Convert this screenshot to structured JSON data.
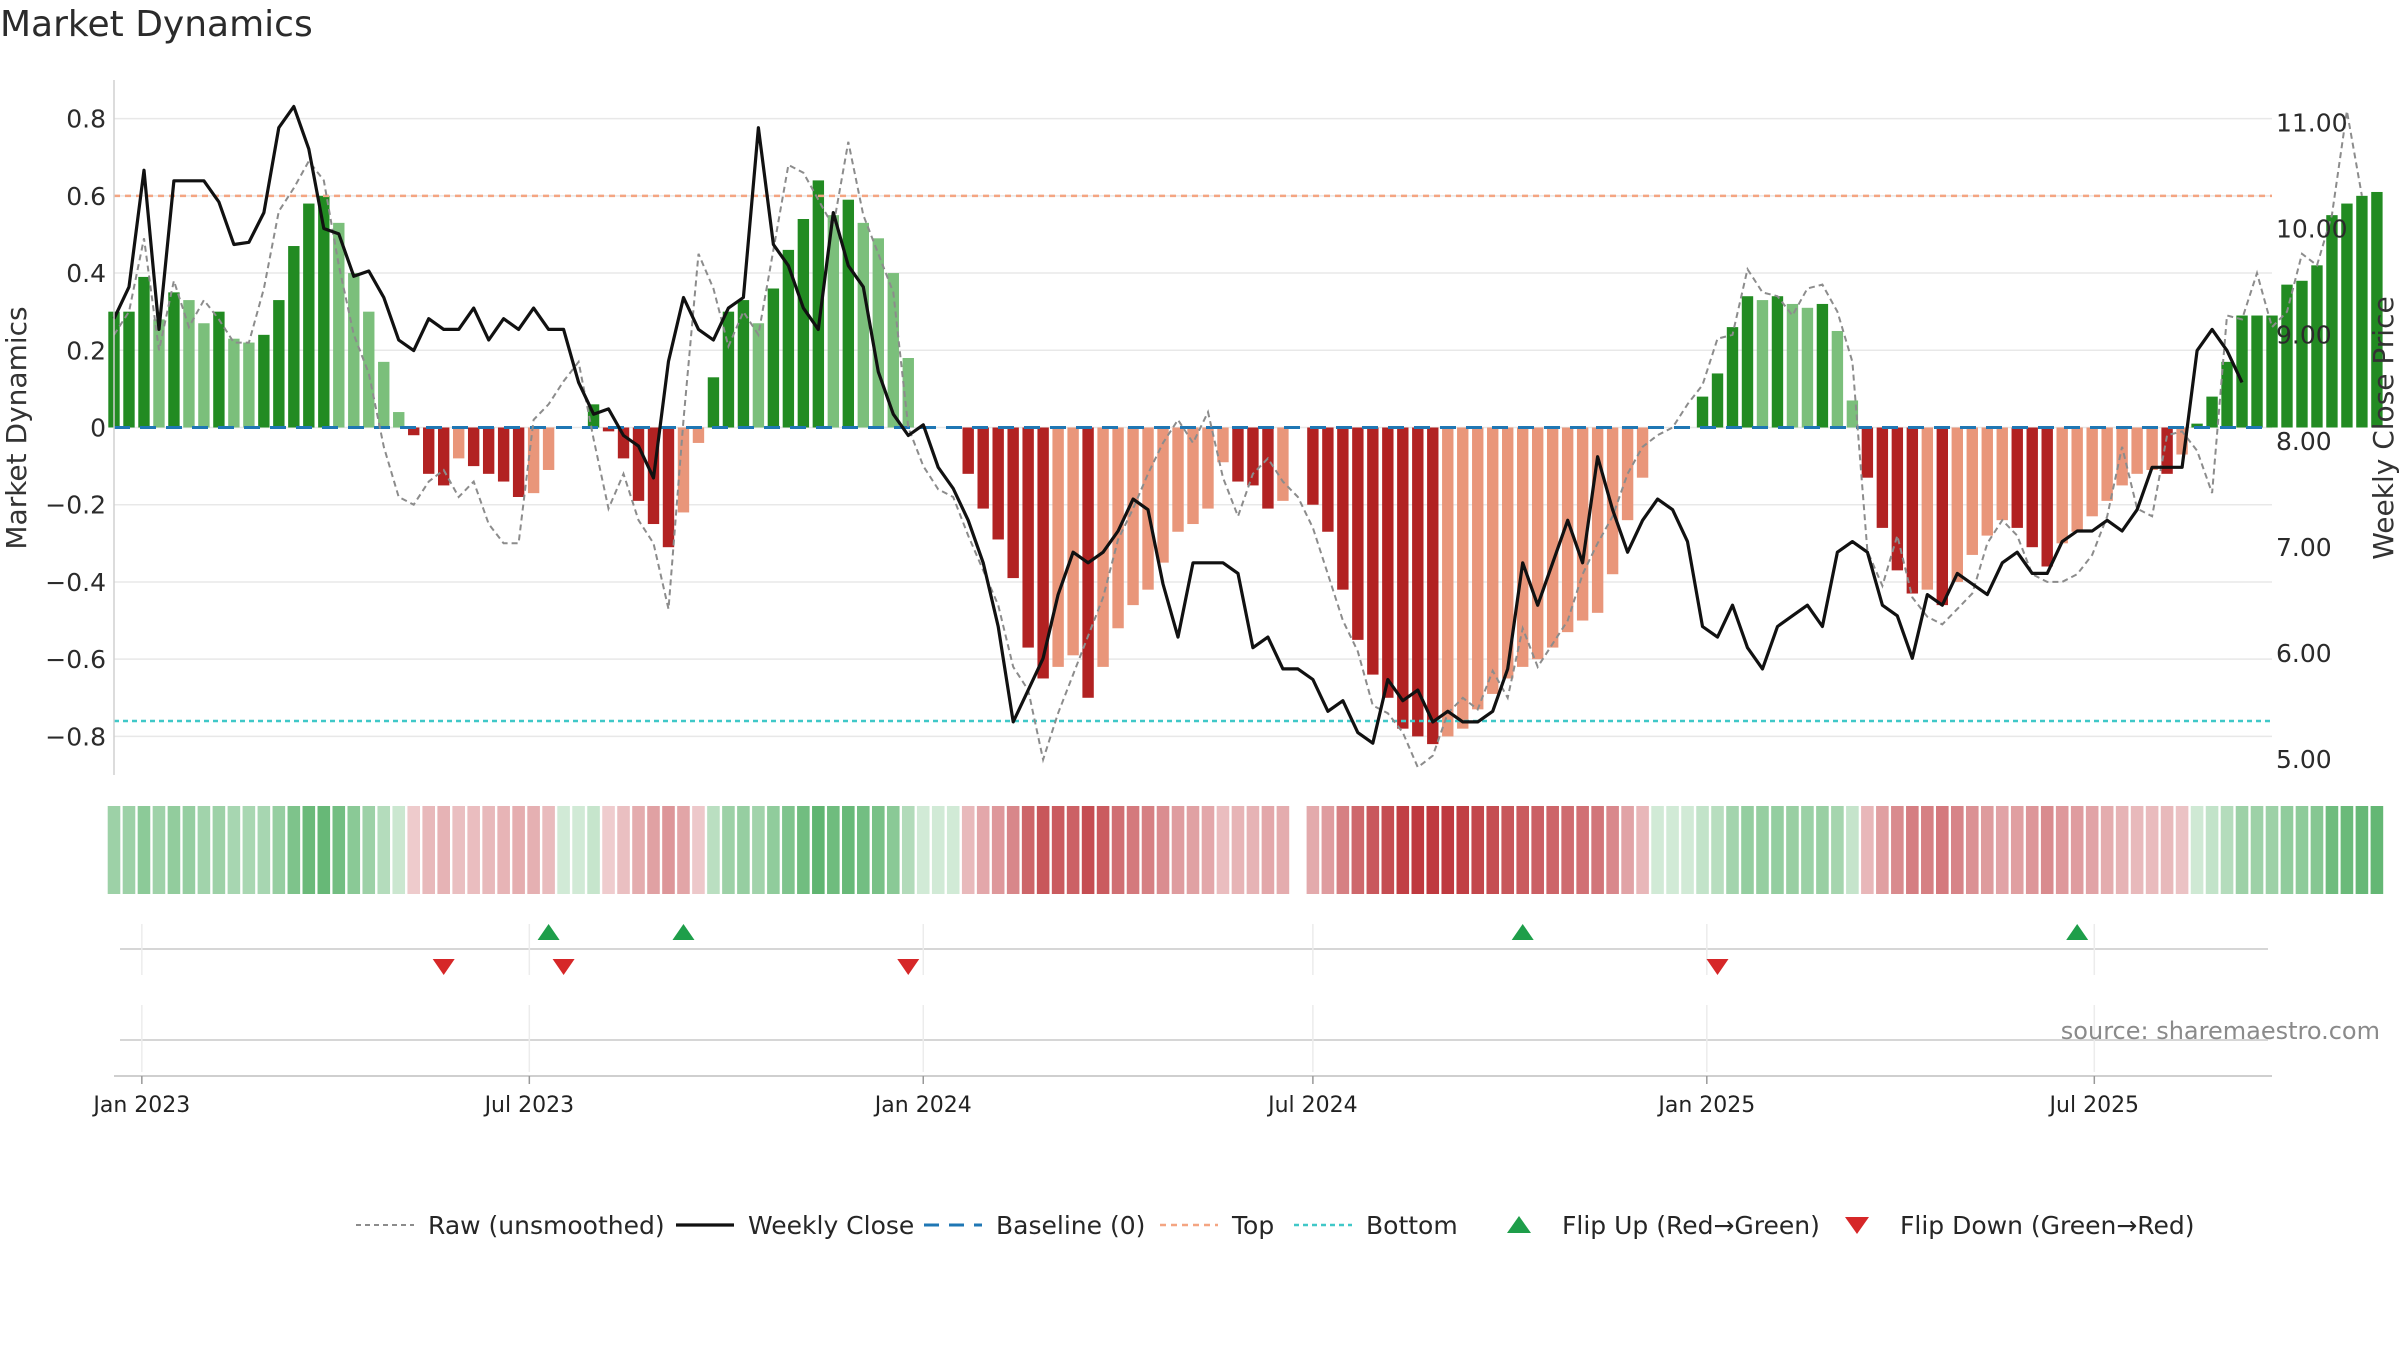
{
  "chart_data": {
    "type": "bar",
    "title": "Market Dynamics",
    "ylabel": "Market Dynamics",
    "y2label": "Weekly Close Price",
    "source": "source: sharemaestro.com",
    "ylim": [
      -0.9,
      0.9
    ],
    "y2lim": [
      4.85,
      11.4
    ],
    "yticks": [
      0.8,
      0.6,
      0.4,
      0.2,
      0,
      -0.2,
      -0.4,
      -0.6,
      -0.8
    ],
    "ytick_labels": [
      "0.8",
      "0.6",
      "0.4",
      "0.2",
      "0",
      "−0.2",
      "−0.4",
      "−0.6",
      "−0.8"
    ],
    "y2ticks": [
      11,
      10,
      9,
      8,
      7,
      6,
      5
    ],
    "y2tick_labels": [
      "11.00",
      "10.00",
      "9.00",
      "8.00",
      "7.00",
      "6.00",
      "5.00"
    ],
    "xlim": [
      "2022-12-19",
      "2025-09-22"
    ],
    "xticks": [
      "2023-01-01",
      "2023-07-01",
      "2024-01-01",
      "2024-07-01",
      "2025-01-01",
      "2025-07-01"
    ],
    "xtick_labels": [
      "Jan 2023",
      "Jul 2023",
      "Jan 2024",
      "Jul 2024",
      "Jan 2025",
      "Jul 2025"
    ],
    "top_level": 0.6,
    "bottom_level": -0.76,
    "start_date": "2022-12-19",
    "interval_days": 7,
    "missing_weeks": [
      79
    ],
    "colors": {
      "pos_strong": "#228b22",
      "pos_weak": "#7bbf7b",
      "neg_strong": "#b22222",
      "neg_weak": "#e9967a",
      "raw": "#8c8c8c",
      "close": "#111111",
      "baseline": "#1f77b4",
      "top": "#f4a582",
      "bottom": "#40c8c8",
      "flip_up": "#1e9e4a",
      "flip_down": "#d62728",
      "grid": "#e8e8e8"
    },
    "series": [
      {
        "name": "Market Dynamics",
        "kind": "bar",
        "values": [
          0.3,
          0.3,
          0.39,
          0.28,
          0.35,
          0.33,
          0.27,
          0.3,
          0.23,
          0.22,
          0.24,
          0.33,
          0.47,
          0.58,
          0.6,
          0.53,
          0.4,
          0.3,
          0.17,
          0.04,
          -0.02,
          -0.12,
          -0.15,
          -0.08,
          -0.1,
          -0.12,
          -0.14,
          -0.18,
          -0.17,
          -0.11,
          0.0,
          0.0,
          0.06,
          -0.01,
          -0.08,
          -0.19,
          -0.25,
          -0.31,
          -0.22,
          -0.04,
          0.13,
          0.3,
          0.33,
          0.27,
          0.36,
          0.46,
          0.54,
          0.64,
          0.55,
          0.59,
          0.53,
          0.49,
          0.4,
          0.18,
          0.0,
          0.0,
          0.0,
          -0.12,
          -0.21,
          -0.29,
          -0.39,
          -0.57,
          -0.65,
          -0.62,
          -0.59,
          -0.7,
          -0.62,
          -0.52,
          -0.46,
          -0.42,
          -0.35,
          -0.27,
          -0.25,
          -0.21,
          -0.09,
          -0.14,
          -0.15,
          -0.21,
          -0.19,
          -0.15,
          -0.2,
          -0.27,
          -0.42,
          -0.55,
          -0.64,
          -0.7,
          -0.78,
          -0.8,
          -0.82,
          -0.8,
          -0.78,
          -0.73,
          -0.69,
          -0.65,
          -0.62,
          -0.6,
          -0.57,
          -0.53,
          -0.5,
          -0.48,
          -0.38,
          -0.24,
          -0.13,
          0.0,
          0.0,
          0.0,
          0.08,
          0.14,
          0.26,
          0.34,
          0.33,
          0.34,
          0.32,
          0.31,
          0.32,
          0.25,
          0.07,
          -0.13,
          -0.26,
          -0.37,
          -0.43,
          -0.42,
          -0.46,
          -0.4,
          -0.33,
          -0.28,
          -0.24,
          -0.26,
          -0.31,
          -0.36,
          -0.3,
          -0.27,
          -0.23,
          -0.19,
          -0.15,
          -0.12,
          -0.11,
          -0.12,
          -0.07,
          0.01,
          0.08,
          0.17,
          0.29,
          0.29,
          0.29,
          0.37,
          0.38,
          0.42,
          0.55,
          0.58,
          0.6,
          0.61
        ]
      },
      {
        "name": "Raw (unsmoothed)",
        "kind": "line",
        "values": [
          0.24,
          0.3,
          0.49,
          0.2,
          0.38,
          0.26,
          0.33,
          0.28,
          0.22,
          0.22,
          0.36,
          0.56,
          0.62,
          0.69,
          0.64,
          0.42,
          0.24,
          0.14,
          -0.05,
          -0.18,
          -0.2,
          -0.14,
          -0.11,
          -0.18,
          -0.14,
          -0.25,
          -0.3,
          -0.3,
          0.02,
          0.06,
          0.12,
          0.17,
          -0.03,
          -0.21,
          -0.12,
          -0.24,
          -0.3,
          -0.47,
          0.02,
          0.45,
          0.36,
          0.21,
          0.3,
          0.24,
          0.46,
          0.68,
          0.66,
          0.59,
          0.52,
          0.74,
          0.55,
          0.45,
          0.35,
          0.0,
          -0.1,
          -0.16,
          -0.18,
          -0.28,
          -0.37,
          -0.46,
          -0.62,
          -0.68,
          -0.86,
          -0.74,
          -0.64,
          -0.54,
          -0.44,
          -0.29,
          -0.21,
          -0.12,
          -0.04,
          0.02,
          -0.04,
          0.04,
          -0.13,
          -0.23,
          -0.12,
          -0.08,
          -0.14,
          -0.18,
          -0.26,
          -0.38,
          -0.5,
          -0.58,
          -0.72,
          -0.74,
          -0.79,
          -0.88,
          -0.85,
          -0.74,
          -0.7,
          -0.73,
          -0.63,
          -0.7,
          -0.52,
          -0.62,
          -0.56,
          -0.5,
          -0.38,
          -0.3,
          -0.23,
          -0.12,
          -0.05,
          -0.02,
          0.0,
          0.06,
          0.11,
          0.23,
          0.24,
          0.41,
          0.35,
          0.34,
          0.29,
          0.36,
          0.37,
          0.3,
          0.17,
          -0.32,
          -0.41,
          -0.28,
          -0.44,
          -0.49,
          -0.51,
          -0.47,
          -0.43,
          -0.3,
          -0.24,
          -0.28,
          -0.38,
          -0.4,
          -0.4,
          -0.38,
          -0.33,
          -0.23,
          -0.05,
          -0.21,
          -0.23,
          -0.02,
          -0.01,
          -0.06,
          -0.17,
          0.29,
          0.28,
          0.4,
          0.26,
          0.3,
          0.45,
          0.42,
          0.55,
          0.82,
          0.6
        ]
      },
      {
        "name": "Weekly Close",
        "kind": "line",
        "axis": "right",
        "values": [
          9.15,
          9.45,
          10.55,
          9.05,
          10.45,
          10.45,
          10.45,
          10.25,
          9.85,
          9.87,
          10.15,
          10.95,
          11.15,
          10.75,
          10.0,
          9.95,
          9.55,
          9.6,
          9.35,
          8.95,
          8.85,
          9.15,
          9.05,
          9.05,
          9.25,
          8.95,
          9.15,
          9.05,
          9.25,
          9.05,
          9.05,
          8.55,
          8.25,
          8.3,
          8.05,
          7.95,
          7.65,
          8.75,
          9.35,
          9.05,
          8.95,
          9.25,
          9.35,
          10.95,
          9.85,
          9.65,
          9.25,
          9.05,
          10.15,
          9.65,
          9.45,
          8.65,
          8.25,
          8.05,
          8.15,
          7.75,
          7.55,
          7.25,
          6.85,
          6.25,
          5.35,
          5.65,
          5.95,
          6.55,
          6.95,
          6.85,
          6.95,
          7.15,
          7.45,
          7.35,
          6.65,
          6.15,
          6.85,
          6.85,
          6.85,
          6.75,
          6.05,
          6.15,
          5.85,
          5.85,
          5.75,
          5.45,
          5.55,
          5.25,
          5.15,
          5.75,
          5.55,
          5.65,
          5.35,
          5.45,
          5.35,
          5.35,
          5.45,
          5.85,
          6.85,
          6.45,
          6.85,
          7.25,
          6.85,
          7.85,
          7.35,
          6.95,
          7.25,
          7.45,
          7.35,
          7.05,
          6.25,
          6.15,
          6.45,
          6.05,
          5.85,
          6.25,
          6.35,
          6.45,
          6.25,
          6.95,
          7.05,
          6.95,
          6.45,
          6.35,
          5.95,
          6.55,
          6.45,
          6.75,
          6.65,
          6.55,
          6.85,
          6.95,
          6.75,
          6.75,
          7.05,
          7.15,
          7.15,
          7.25,
          7.15,
          7.35,
          7.75,
          7.75,
          7.75,
          8.85,
          9.05,
          8.85,
          8.55
        ]
      }
    ],
    "flip_up_dates": [
      "2023-07-10",
      "2023-09-11",
      "2024-10-07",
      "2025-06-23"
    ],
    "flip_down_dates": [
      "2023-05-22",
      "2023-07-17",
      "2023-12-25",
      "2025-01-06"
    ],
    "legend": {
      "placement": "bottom",
      "entries": [
        "Raw (unsmoothed)",
        "Weekly Close",
        "Baseline (0)",
        "Top",
        "Bottom",
        "Flip Up (Red→Green)",
        "Flip Down (Green→Red)"
      ]
    }
  }
}
